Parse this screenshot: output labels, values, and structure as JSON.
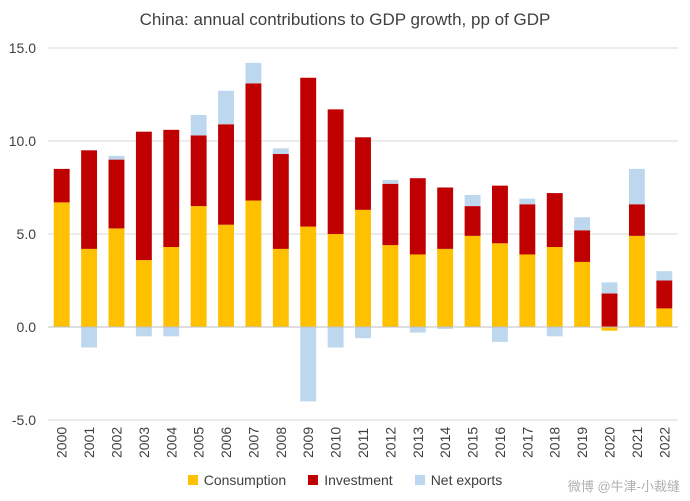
{
  "chart_data": {
    "type": "bar",
    "stacked": true,
    "title": "China: annual contributions to GDP growth, pp of GDP",
    "xlabel": "",
    "ylabel": "",
    "ylim": [
      -5.0,
      15.0
    ],
    "yticks": [
      "-5.0",
      "0.0",
      "5.0",
      "10.0",
      "15.0"
    ],
    "ytick_values": [
      -5,
      0,
      5,
      10,
      15
    ],
    "grid": true,
    "legend_position": "bottom",
    "categories": [
      "2000",
      "2001",
      "2002",
      "2003",
      "2004",
      "2005",
      "2006",
      "2007",
      "2008",
      "2009",
      "2010",
      "2011",
      "2012",
      "2013",
      "2014",
      "2015",
      "2016",
      "2017",
      "2018",
      "2019",
      "2020",
      "2021",
      "2022"
    ],
    "series": [
      {
        "name": "Consumption",
        "color": "#FFC000",
        "values": [
          6.7,
          4.2,
          5.3,
          3.6,
          4.3,
          6.5,
          5.5,
          6.8,
          4.2,
          5.4,
          5.0,
          6.3,
          4.4,
          3.9,
          4.2,
          4.9,
          4.5,
          3.9,
          4.3,
          3.5,
          -0.2,
          4.9,
          1.0
        ]
      },
      {
        "name": "Investment",
        "color": "#C00000",
        "values": [
          1.8,
          5.3,
          3.7,
          6.9,
          6.3,
          3.8,
          5.4,
          6.3,
          5.1,
          8.0,
          6.7,
          3.9,
          3.3,
          4.1,
          3.3,
          1.6,
          3.1,
          2.7,
          2.9,
          1.7,
          1.8,
          1.7,
          1.5
        ]
      },
      {
        "name": "Net exports",
        "color": "#BDD7EE",
        "values": [
          0.0,
          -1.1,
          0.2,
          -0.5,
          -0.5,
          1.1,
          1.8,
          1.1,
          0.3,
          -4.0,
          -1.1,
          -0.6,
          0.2,
          -0.3,
          -0.1,
          0.6,
          -0.8,
          0.3,
          -0.5,
          0.7,
          0.6,
          1.9,
          0.5
        ]
      }
    ]
  },
  "watermark": "微博 @牛津-小裁缝"
}
